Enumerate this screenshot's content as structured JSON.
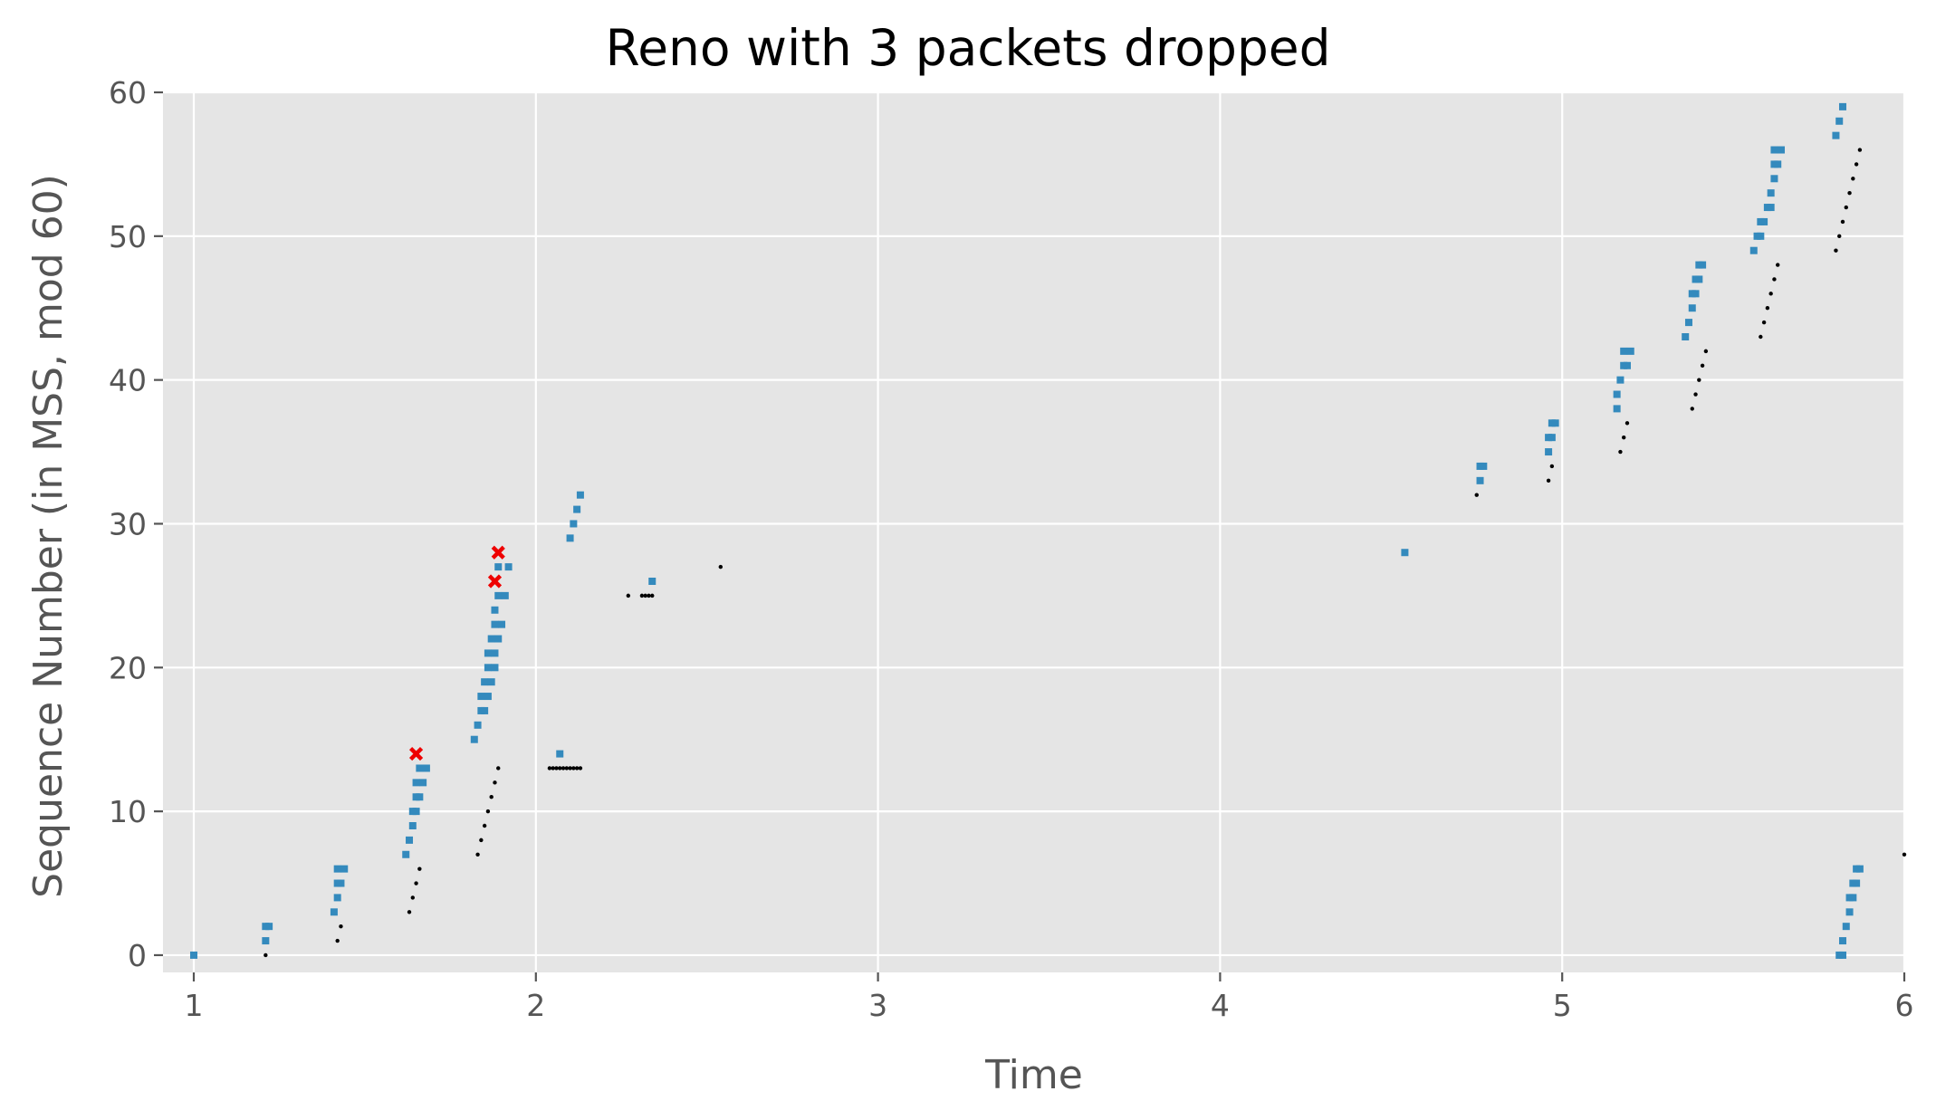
{
  "chart_data": {
    "type": "scatter",
    "title": "Reno with 3 packets dropped",
    "xlabel": "Time",
    "ylabel": "Sequence Number (in MSS, mod 60)",
    "xlim": [
      0.91,
      6.0
    ],
    "ylim": [
      -1.2,
      60.0
    ],
    "x_ticks": [
      1,
      2,
      3,
      4,
      5,
      6
    ],
    "y_ticks": [
      0,
      10,
      20,
      30,
      40,
      50,
      60
    ],
    "grid": true,
    "background": "#e5e5e5",
    "grid_color": "#ffffff",
    "legend": "none",
    "series": [
      {
        "role": "packets sent",
        "marker": "square",
        "color": "#348abd",
        "points": [
          [
            1.0,
            0
          ],
          [
            1.21,
            1
          ],
          [
            1.21,
            2
          ],
          [
            1.22,
            2
          ],
          [
            1.41,
            3
          ],
          [
            1.42,
            4
          ],
          [
            1.42,
            5
          ],
          [
            1.43,
            5
          ],
          [
            1.42,
            6
          ],
          [
            1.44,
            6
          ],
          [
            1.62,
            7
          ],
          [
            1.63,
            8
          ],
          [
            1.64,
            9
          ],
          [
            1.64,
            10
          ],
          [
            1.65,
            10
          ],
          [
            1.65,
            11
          ],
          [
            1.66,
            11
          ],
          [
            1.65,
            12
          ],
          [
            1.67,
            12
          ],
          [
            1.66,
            13
          ],
          [
            1.68,
            13
          ],
          [
            1.82,
            15
          ],
          [
            1.83,
            16
          ],
          [
            1.84,
            17
          ],
          [
            1.85,
            17
          ],
          [
            1.84,
            18
          ],
          [
            1.86,
            18
          ],
          [
            1.85,
            19
          ],
          [
            1.87,
            19
          ],
          [
            1.86,
            20
          ],
          [
            1.88,
            20
          ],
          [
            1.86,
            21
          ],
          [
            1.88,
            21
          ],
          [
            1.87,
            22
          ],
          [
            1.89,
            22
          ],
          [
            1.88,
            23
          ],
          [
            1.9,
            23
          ],
          [
            1.88,
            24
          ],
          [
            1.89,
            25
          ],
          [
            1.91,
            25
          ],
          [
            1.89,
            27
          ],
          [
            1.92,
            27
          ],
          [
            2.07,
            14
          ],
          [
            2.1,
            29
          ],
          [
            2.11,
            30
          ],
          [
            2.12,
            31
          ],
          [
            2.13,
            32
          ],
          [
            2.34,
            26
          ],
          [
            4.54,
            28
          ],
          [
            4.76,
            33
          ],
          [
            4.76,
            34
          ],
          [
            4.77,
            34
          ],
          [
            4.96,
            35
          ],
          [
            4.96,
            36
          ],
          [
            4.97,
            36
          ],
          [
            4.97,
            37
          ],
          [
            4.98,
            37
          ],
          [
            5.16,
            38
          ],
          [
            5.16,
            39
          ],
          [
            5.17,
            40
          ],
          [
            5.18,
            41
          ],
          [
            5.19,
            41
          ],
          [
            5.18,
            42
          ],
          [
            5.2,
            42
          ],
          [
            5.36,
            43
          ],
          [
            5.37,
            44
          ],
          [
            5.38,
            45
          ],
          [
            5.38,
            46
          ],
          [
            5.39,
            46
          ],
          [
            5.39,
            47
          ],
          [
            5.4,
            47
          ],
          [
            5.4,
            48
          ],
          [
            5.41,
            48
          ],
          [
            5.56,
            49
          ],
          [
            5.57,
            50
          ],
          [
            5.58,
            50
          ],
          [
            5.58,
            51
          ],
          [
            5.59,
            51
          ],
          [
            5.6,
            52
          ],
          [
            5.61,
            52
          ],
          [
            5.61,
            53
          ],
          [
            5.62,
            54
          ],
          [
            5.62,
            55
          ],
          [
            5.63,
            55
          ],
          [
            5.62,
            56
          ],
          [
            5.64,
            56
          ],
          [
            5.8,
            57
          ],
          [
            5.81,
            58
          ],
          [
            5.82,
            59
          ],
          [
            5.81,
            0
          ],
          [
            5.82,
            0
          ],
          [
            5.82,
            1
          ],
          [
            5.83,
            2
          ],
          [
            5.84,
            3
          ],
          [
            5.84,
            4
          ],
          [
            5.85,
            4
          ],
          [
            5.85,
            5
          ],
          [
            5.86,
            5
          ],
          [
            5.86,
            6
          ],
          [
            5.87,
            6
          ]
        ]
      },
      {
        "role": "acknowledgements",
        "marker": "dot",
        "color": "#000000",
        "points": [
          [
            1.21,
            0
          ],
          [
            1.42,
            1
          ],
          [
            1.43,
            2
          ],
          [
            1.63,
            3
          ],
          [
            1.64,
            4
          ],
          [
            1.65,
            5
          ],
          [
            1.66,
            6
          ],
          [
            1.83,
            7
          ],
          [
            1.84,
            8
          ],
          [
            1.85,
            9
          ],
          [
            1.86,
            10
          ],
          [
            1.87,
            11
          ],
          [
            1.88,
            12
          ],
          [
            1.89,
            13
          ],
          [
            2.04,
            13
          ],
          [
            2.05,
            13
          ],
          [
            2.06,
            13
          ],
          [
            2.07,
            13
          ],
          [
            2.08,
            13
          ],
          [
            2.09,
            13
          ],
          [
            2.1,
            13
          ],
          [
            2.11,
            13
          ],
          [
            2.12,
            13
          ],
          [
            2.13,
            13
          ],
          [
            2.27,
            25
          ],
          [
            2.31,
            25
          ],
          [
            2.32,
            25
          ],
          [
            2.33,
            25
          ],
          [
            2.34,
            25
          ],
          [
            2.54,
            27
          ],
          [
            4.75,
            32
          ],
          [
            4.96,
            33
          ],
          [
            4.97,
            34
          ],
          [
            5.17,
            35
          ],
          [
            5.18,
            36
          ],
          [
            5.19,
            37
          ],
          [
            5.38,
            38
          ],
          [
            5.39,
            39
          ],
          [
            5.4,
            40
          ],
          [
            5.41,
            41
          ],
          [
            5.42,
            42
          ],
          [
            5.58,
            43
          ],
          [
            5.59,
            44
          ],
          [
            5.6,
            45
          ],
          [
            5.61,
            46
          ],
          [
            5.62,
            47
          ],
          [
            5.63,
            48
          ],
          [
            5.8,
            49
          ],
          [
            5.81,
            50
          ],
          [
            5.82,
            51
          ],
          [
            5.83,
            52
          ],
          [
            5.84,
            53
          ],
          [
            5.85,
            54
          ],
          [
            5.86,
            55
          ],
          [
            5.87,
            56
          ],
          [
            6.0,
            7
          ]
        ]
      },
      {
        "role": "packets dropped",
        "marker": "x",
        "color": "#ee0000",
        "points": [
          [
            1.65,
            14
          ],
          [
            1.88,
            26
          ],
          [
            1.89,
            28
          ]
        ]
      }
    ]
  }
}
